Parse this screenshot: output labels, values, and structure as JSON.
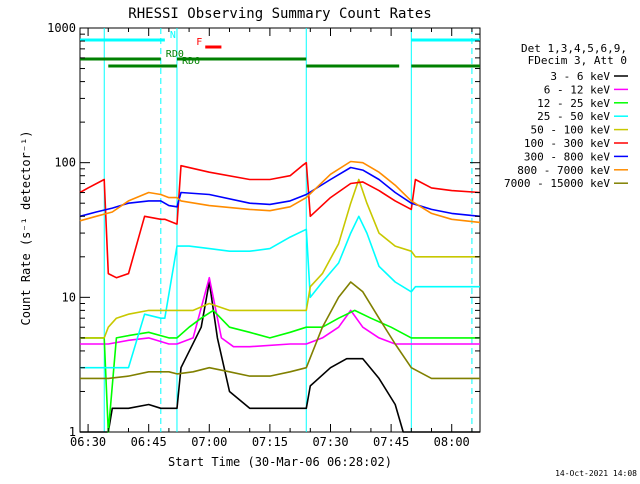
{
  "chart_data": {
    "type": "line",
    "title": "RHESSI Observing Summary Count Rates",
    "xlabel": "Start Time (30-Mar-06 06:28:02)",
    "ylabel": "Count Rate (s⁻¹ detector⁻¹)",
    "y_scale": "log",
    "ylim": [
      1,
      1000
    ],
    "xlim_minutes": [
      388,
      487
    ],
    "x_ticks": [
      {
        "label": "06:30",
        "minute": 390
      },
      {
        "label": "06:45",
        "minute": 405
      },
      {
        "label": "07:00",
        "minute": 420
      },
      {
        "label": "07:15",
        "minute": 435
      },
      {
        "label": "07:30",
        "minute": 450
      },
      {
        "label": "07:45",
        "minute": 465
      },
      {
        "label": "08:00",
        "minute": 480
      }
    ],
    "y_ticks": [
      {
        "label": "1",
        "value": 1
      },
      {
        "label": "10",
        "value": 10
      },
      {
        "label": "100",
        "value": 100
      },
      {
        "label": "1000",
        "value": 1000
      }
    ],
    "legend_header": [
      "Det 1,3,4,5,6,9,",
      "FDecim 3, Att 0"
    ],
    "legend_position": "right",
    "footer_date": "14-Oct-2021 14:08",
    "flags": [
      {
        "label": "N",
        "color": "#00ffff",
        "segments": [
          [
            388,
            409
          ],
          [
            470,
            487
          ]
        ]
      },
      {
        "label": "F",
        "color": "#ff0000",
        "segments": [
          [
            419,
            423
          ]
        ]
      },
      {
        "label": "RD0",
        "color": "#008000",
        "segments": [
          [
            388,
            408
          ],
          [
            412,
            444
          ]
        ]
      },
      {
        "label": "RD6",
        "color": "#008000",
        "segments": [
          [
            395,
            412
          ],
          [
            444,
            467
          ],
          [
            470,
            487
          ]
        ]
      }
    ],
    "night_lines": [
      {
        "minute": 394,
        "color": "#00ffff",
        "style": "solid"
      },
      {
        "minute": 408,
        "color": "#00ffff",
        "style": "dashed"
      },
      {
        "minute": 412,
        "color": "#00ffff",
        "style": "solid"
      },
      {
        "minute": 444,
        "color": "#00ffff",
        "style": "solid"
      },
      {
        "minute": 470,
        "color": "#00ffff",
        "style": "solid"
      },
      {
        "minute": 485,
        "color": "#00ffff",
        "style": "dashed"
      }
    ],
    "series": [
      {
        "name": "3 - 6 keV",
        "color": "#000000",
        "x": [
          388,
          395,
          396,
          400,
          405,
          408,
          409,
          412,
          413,
          418,
          420,
          422,
          425,
          430,
          440,
          444,
          445,
          450,
          454,
          458,
          462,
          466,
          468,
          470,
          487
        ],
        "y": [
          1,
          1,
          1.5,
          1.5,
          1.6,
          1.5,
          1.5,
          1.5,
          3,
          6,
          13,
          5,
          2,
          1.5,
          1.5,
          1.5,
          2.2,
          3,
          3.5,
          3.5,
          2.5,
          1.6,
          1,
          1,
          1
        ]
      },
      {
        "name": "6 - 12 keV",
        "color": "#ff00ff",
        "x": [
          388,
          395,
          400,
          405,
          410,
          412,
          416,
          420,
          423,
          426,
          430,
          440,
          444,
          448,
          452,
          455,
          458,
          462,
          466,
          470,
          475,
          487
        ],
        "y": [
          4.5,
          4.5,
          4.8,
          5,
          4.5,
          4.5,
          5,
          14,
          5,
          4.3,
          4.3,
          4.5,
          4.5,
          5,
          6,
          8,
          6,
          5,
          4.5,
          4.5,
          4.5,
          4.5
        ]
      },
      {
        "name": "12 - 25 keV",
        "color": "#00ff00",
        "x": [
          388,
          394,
          395,
          397,
          400,
          405,
          410,
          412,
          415,
          418,
          421,
          425,
          430,
          435,
          440,
          444,
          448,
          452,
          456,
          460,
          465,
          470,
          475,
          480,
          487
        ],
        "y": [
          5,
          5,
          1,
          5,
          5.2,
          5.5,
          5,
          5,
          6,
          7,
          8,
          6,
          5.5,
          5,
          5.5,
          6,
          6,
          7,
          8,
          7,
          6,
          5,
          5,
          5,
          5
        ]
      },
      {
        "name": "25 - 50 keV",
        "color": "#00ffff",
        "x": [
          388,
          394,
          395,
          397,
          400,
          404,
          408,
          409,
          412,
          415,
          420,
          425,
          430,
          435,
          440,
          444,
          445,
          448,
          452,
          455,
          457,
          459,
          462,
          466,
          470,
          471,
          475,
          480,
          487
        ],
        "y": [
          3,
          3,
          3,
          3,
          3,
          7.5,
          7,
          7,
          24,
          24,
          23,
          22,
          22,
          23,
          28,
          32,
          10,
          13,
          18,
          30,
          40,
          30,
          17,
          13,
          11,
          12,
          12,
          12,
          12
        ]
      },
      {
        "name": "50 - 100 keV",
        "color": "#c8c800",
        "x": [
          388,
          394,
          395,
          397,
          400,
          405,
          408,
          409,
          412,
          416,
          420,
          425,
          430,
          435,
          440,
          444,
          445,
          448,
          452,
          455,
          457,
          459,
          462,
          466,
          470,
          471,
          475,
          480,
          487
        ],
        "y": [
          5,
          5,
          6,
          7,
          7.5,
          8,
          8,
          8,
          8,
          8,
          9,
          8,
          8,
          8,
          8,
          8,
          12,
          15,
          25,
          50,
          75,
          50,
          30,
          24,
          22,
          20,
          20,
          20,
          20
        ]
      },
      {
        "name": "100 - 300 keV",
        "color": "#ff0000",
        "x": [
          388,
          390,
          394,
          395,
          397,
          400,
          404,
          408,
          409,
          412,
          413,
          420,
          430,
          435,
          440,
          443,
          444,
          445,
          450,
          455,
          458,
          462,
          466,
          470,
          471,
          475,
          480,
          487
        ],
        "y": [
          60,
          65,
          75,
          15,
          14,
          15,
          40,
          38,
          38,
          35,
          95,
          85,
          75,
          75,
          80,
          95,
          100,
          40,
          55,
          70,
          72,
          62,
          52,
          45,
          75,
          65,
          62,
          60
        ]
      },
      {
        "name": "300 - 800 keV",
        "color": "#0000ff",
        "x": [
          388,
          392,
          396,
          400,
          405,
          408,
          410,
          412,
          413,
          420,
          430,
          435,
          440,
          444,
          450,
          455,
          458,
          462,
          466,
          470,
          475,
          480,
          487
        ],
        "y": [
          40,
          43,
          46,
          50,
          52,
          52,
          48,
          47,
          60,
          58,
          50,
          49,
          52,
          58,
          75,
          92,
          88,
          75,
          60,
          50,
          45,
          42,
          40
        ]
      },
      {
        "name": "800 - 7000 keV",
        "color": "#ff8c00",
        "x": [
          388,
          392,
          396,
          400,
          405,
          408,
          410,
          412,
          413,
          420,
          430,
          435,
          440,
          444,
          450,
          455,
          458,
          462,
          466,
          470,
          475,
          480,
          487
        ],
        "y": [
          37,
          40,
          43,
          52,
          60,
          58,
          55,
          55,
          52,
          48,
          45,
          44,
          47,
          55,
          82,
          102,
          100,
          85,
          68,
          52,
          42,
          38,
          36
        ]
      },
      {
        "name": "7000 - 15000 keV",
        "color": "#808000",
        "x": [
          388,
          395,
          400,
          405,
          410,
          412,
          416,
          420,
          425,
          430,
          435,
          440,
          444,
          448,
          452,
          455,
          458,
          462,
          466,
          470,
          475,
          480,
          487
        ],
        "y": [
          2.5,
          2.5,
          2.6,
          2.8,
          2.8,
          2.7,
          2.8,
          3,
          2.8,
          2.6,
          2.6,
          2.8,
          3,
          6,
          10,
          13,
          11,
          7,
          4.5,
          3,
          2.5,
          2.5,
          2.5
        ]
      }
    ]
  }
}
